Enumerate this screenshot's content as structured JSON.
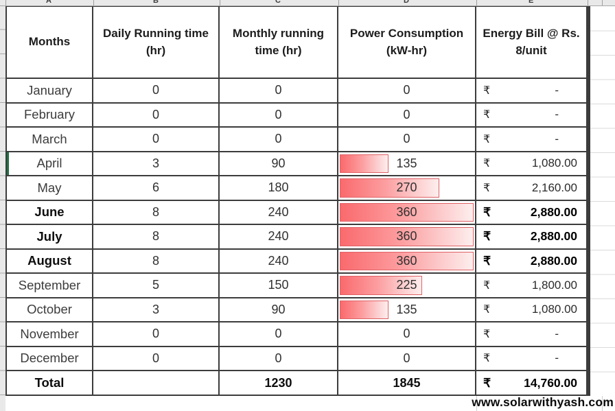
{
  "sheet": {
    "column_letters": [
      "A",
      "B",
      "C",
      "D",
      "E"
    ],
    "colors": {
      "bar_gradient_start": "#fa6a6d",
      "bar_gradient_end": "#fdeeee",
      "bar_border": "#df6165",
      "grid_border": "#3c3c3c",
      "selection_green": "#1f7244"
    }
  },
  "table": {
    "currency_symbol": "₹",
    "headers": [
      "Months",
      "Daily Running time (hr)",
      "Monthly running time (hr)",
      "Power Consumption (kW-hr)",
      "Energy Bill @ Rs. 8/unit"
    ],
    "rows": [
      {
        "month": "January",
        "daily": "0",
        "monthly": "0",
        "power": "0",
        "bar_pct": 0,
        "bill": "-"
      },
      {
        "month": "February",
        "daily": "0",
        "monthly": "0",
        "power": "0",
        "bar_pct": 0,
        "bill": "-"
      },
      {
        "month": "March",
        "daily": "0",
        "monthly": "0",
        "power": "0",
        "bar_pct": 0,
        "bill": "-"
      },
      {
        "month": "April",
        "daily": "3",
        "monthly": "90",
        "power": "135",
        "bar_pct": 37.5,
        "bill": "1,080.00"
      },
      {
        "month": "May",
        "daily": "6",
        "monthly": "180",
        "power": "270",
        "bar_pct": 75,
        "bill": "2,160.00"
      },
      {
        "month": "June",
        "daily": "8",
        "monthly": "240",
        "power": "360",
        "bar_pct": 100,
        "bill": "2,880.00"
      },
      {
        "month": "July",
        "daily": "8",
        "monthly": "240",
        "power": "360",
        "bar_pct": 100,
        "bill": "2,880.00"
      },
      {
        "month": "August",
        "daily": "8",
        "monthly": "240",
        "power": "360",
        "bar_pct": 100,
        "bill": "2,880.00"
      },
      {
        "month": "September",
        "daily": "5",
        "monthly": "150",
        "power": "225",
        "bar_pct": 62.5,
        "bill": "1,800.00"
      },
      {
        "month": "October",
        "daily": "3",
        "monthly": "90",
        "power": "135",
        "bar_pct": 37.5,
        "bill": "1,080.00"
      },
      {
        "month": "November",
        "daily": "0",
        "monthly": "0",
        "power": "0",
        "bar_pct": 0,
        "bill": "-"
      },
      {
        "month": "December",
        "daily": "0",
        "monthly": "0",
        "power": "0",
        "bar_pct": 0,
        "bill": "-"
      }
    ],
    "total": {
      "label": "Total",
      "daily": "",
      "monthly": "1230",
      "power": "1845",
      "bill": "14,760.00"
    }
  },
  "footer": {
    "website": "www.solarwithyash.com"
  }
}
